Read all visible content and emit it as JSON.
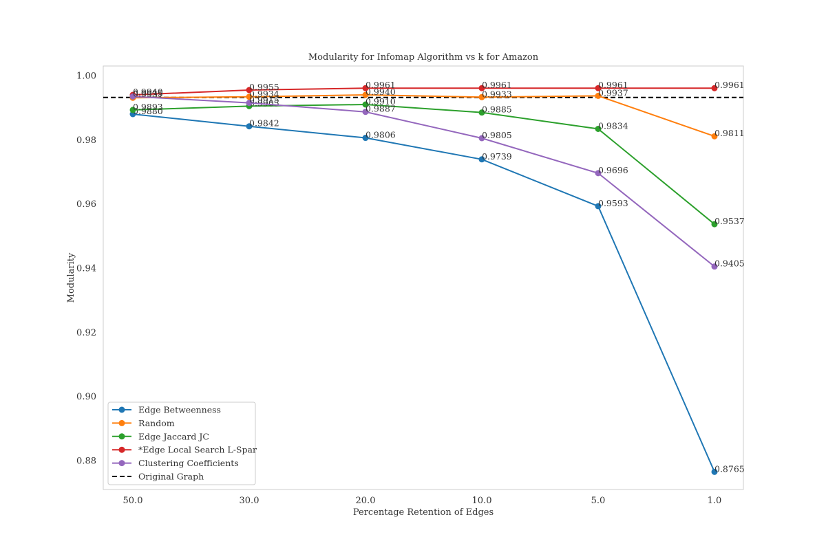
{
  "chart_data": {
    "type": "line",
    "title": "Modularity for Infomap Algorithm vs k for Amazon",
    "xlabel": "Percentage Retention of Edges",
    "ylabel": "Modularity",
    "categories": [
      "50.0",
      "30.0",
      "20.0",
      "10.0",
      "5.0",
      "1.0"
    ],
    "ylim": [
      0.871,
      1.003
    ],
    "yticks": [
      "0.88",
      "0.90",
      "0.92",
      "0.94",
      "0.96",
      "0.98",
      "1.00"
    ],
    "grid": false,
    "legend_position": "lower-left",
    "series": [
      {
        "name": "Edge Betweenness",
        "color": "#1f77b4",
        "values": [
          0.988,
          0.9842,
          0.9806,
          0.9739,
          0.9593,
          0.8765
        ],
        "labels": [
          "0.9880",
          "0.9842",
          "0.9806",
          "0.9739",
          "0.9593",
          "0.8765"
        ]
      },
      {
        "name": "Random",
        "color": "#ff7f0e",
        "values": [
          0.9931,
          0.9934,
          0.994,
          0.9933,
          0.9937,
          0.9811
        ],
        "labels": [
          "0.9931",
          "0.9934",
          "0.9940",
          "0.9933",
          "0.9937",
          "0.9811"
        ]
      },
      {
        "name": "Edge Jaccard JC",
        "color": "#2ca02c",
        "values": [
          0.9893,
          0.9905,
          0.991,
          0.9885,
          0.9834,
          0.9537
        ],
        "labels": [
          "0.9893",
          "0.9905",
          "0.9910",
          "0.9885",
          "0.9834",
          "0.9537"
        ]
      },
      {
        "name": "*Edge Local Search L-Spar",
        "color": "#d62728",
        "values": [
          0.994,
          0.9955,
          0.9961,
          0.9961,
          0.9961,
          0.9961
        ],
        "labels": [
          "0.9940",
          "0.9955",
          "0.9961",
          "0.9961",
          "0.9961",
          "0.9961"
        ]
      },
      {
        "name": "Clustering Coefficients",
        "color": "#9467bd",
        "values": [
          0.9935,
          0.9915,
          0.9887,
          0.9805,
          0.9696,
          0.9405
        ],
        "labels": [
          "0.9935",
          "0.9915",
          "0.9887",
          "0.9805",
          "0.9696",
          "0.9405"
        ]
      }
    ],
    "reference_line": {
      "name": "Original Graph",
      "value": 0.9932,
      "color": "#000000",
      "style": "dashed"
    }
  }
}
